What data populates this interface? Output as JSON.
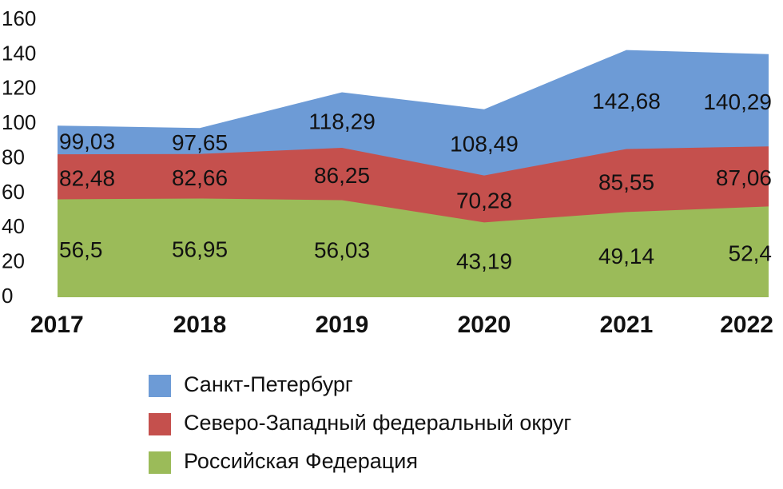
{
  "chart_data": {
    "type": "area",
    "categories": [
      "2017",
      "2018",
      "2019",
      "2020",
      "2021",
      "2022"
    ],
    "series": [
      {
        "name": "Санкт-Петербург",
        "color": "#6d9bd6",
        "values": [
          99.03,
          97.65,
          118.29,
          108.49,
          142.68,
          140.29
        ],
        "value_labels": [
          "99,03",
          "97,65",
          "118,29",
          "108,49",
          "142,68",
          "140,29"
        ]
      },
      {
        "name": "Северо-Западный федеральный округ",
        "color": "#c5504d",
        "values": [
          82.48,
          82.66,
          86.25,
          70.28,
          85.55,
          87.06
        ],
        "value_labels": [
          "82,48",
          "82,66",
          "86,25",
          "70,28",
          "85,55",
          "87,06"
        ]
      },
      {
        "name": "Российская Федерация",
        "color": "#9bbb59",
        "values": [
          56.5,
          56.95,
          56.03,
          43.19,
          49.14,
          52.4
        ],
        "value_labels": [
          "56,5",
          "56,95",
          "56,03",
          "43,19",
          "49,14",
          "52,4"
        ]
      }
    ],
    "ylim": [
      0,
      160
    ],
    "yticks": [
      0,
      20,
      40,
      60,
      80,
      100,
      120,
      140,
      160
    ],
    "grid": false
  }
}
